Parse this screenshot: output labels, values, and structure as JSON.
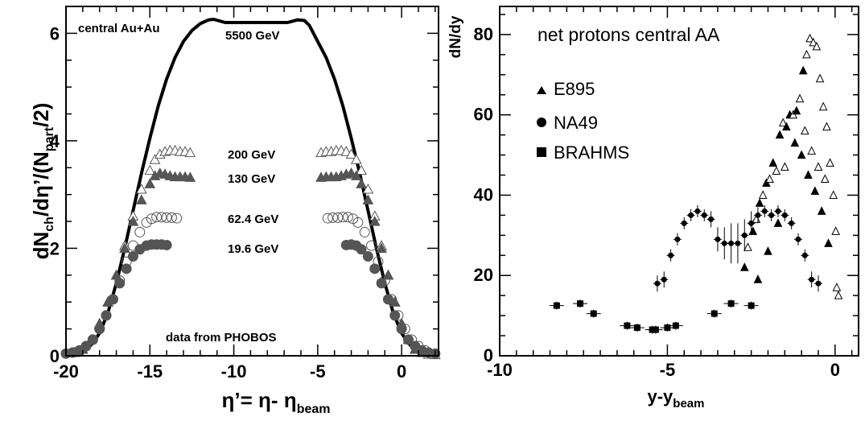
{
  "chart_data": [
    {
      "type": "scatter",
      "title": "",
      "xlabel": {
        "main": "η’= η- η",
        "sub": "beam"
      },
      "ylabel": {
        "p1": "dN",
        "s1": "ch",
        "p2": "/dη’/(N",
        "s2": "part",
        "p3": "/2)"
      },
      "xlim": [
        -20,
        2.2
      ],
      "ylim": [
        0,
        6.5
      ],
      "x_ticks": [
        -20,
        -15,
        -10,
        -5,
        0
      ],
      "y_ticks": [
        0,
        2,
        4,
        6
      ],
      "annotations": {
        "system": "central Au+Au",
        "source": "data from PHOBOS",
        "e5500": "5500 GeV",
        "e200": "200 GeV",
        "e130": "130 GeV",
        "e62": "62.4 GeV",
        "e19": "19.6 GeV"
      },
      "curve_5500": {
        "x": [
          -20,
          -19.5,
          -19,
          -18.5,
          -18,
          -17.5,
          -17,
          -16.5,
          -16,
          -15.5,
          -15,
          -14.5,
          -14,
          -13.5,
          -13,
          -12.5,
          -12,
          -11.5,
          -11.2,
          -10.5,
          -9,
          -8,
          -6.8,
          -6.2,
          -5.8,
          -5.5,
          -5,
          -4.5,
          -4,
          -3.5,
          -3,
          -2.5,
          -2,
          -1.5,
          -1,
          -0.5,
          0,
          0.5,
          1,
          1.5,
          2,
          2.2
        ],
        "y": [
          0.02,
          0.04,
          0.09,
          0.2,
          0.42,
          0.8,
          1.35,
          2.0,
          2.7,
          3.4,
          4.05,
          4.65,
          5.15,
          5.55,
          5.85,
          6.05,
          6.18,
          6.25,
          6.26,
          6.2,
          6.2,
          6.2,
          6.2,
          6.25,
          6.24,
          6.15,
          5.85,
          5.55,
          5.15,
          4.65,
          4.05,
          3.4,
          2.7,
          2.0,
          1.35,
          0.8,
          0.42,
          0.2,
          0.09,
          0.04,
          0.02,
          0.02
        ]
      },
      "series": [
        {
          "name": "200 GeV",
          "marker": "triangle-open",
          "color": "#555555",
          "x": [
            -19.5,
            -19,
            -18.5,
            -18,
            -17.5,
            -17,
            -16.5,
            -16,
            -15.5,
            -15,
            -14.7,
            -14.4,
            -14.1,
            -13.8,
            -13.5,
            -13.2,
            -12.9,
            -12.6,
            -4.8,
            -4.5,
            -4.2,
            -3.9,
            -3.6,
            -3.3,
            -3.0,
            -2.7,
            -2.4,
            -2.0,
            -1.6,
            -1.2,
            -0.8,
            -0.4,
            0,
            0.4,
            0.8,
            1.2,
            1.6,
            2.0
          ],
          "y": [
            0.06,
            0.12,
            0.3,
            0.6,
            1.0,
            1.5,
            2.05,
            2.6,
            3.1,
            3.45,
            3.65,
            3.75,
            3.8,
            3.82,
            3.82,
            3.8,
            3.8,
            3.78,
            3.78,
            3.8,
            3.8,
            3.82,
            3.82,
            3.8,
            3.75,
            3.65,
            3.45,
            3.1,
            2.6,
            2.05,
            1.5,
            1.0,
            0.6,
            0.3,
            0.12,
            0.06,
            0.03,
            0.02
          ]
        },
        {
          "name": "130 GeV",
          "marker": "triangle-filled",
          "color": "#555555",
          "x": [
            -19.5,
            -19,
            -18.5,
            -18,
            -17.5,
            -17,
            -16.5,
            -16,
            -15.5,
            -15,
            -14.7,
            -14.4,
            -14.1,
            -13.8,
            -13.5,
            -13.2,
            -12.9,
            -12.6,
            -4.8,
            -4.5,
            -4.2,
            -3.9,
            -3.6,
            -3.3,
            -3.0,
            -2.7,
            -2.4,
            -2.0,
            -1.6,
            -1.2,
            -0.8,
            -0.4,
            0,
            0.4,
            0.8,
            1.2
          ],
          "y": [
            0.06,
            0.12,
            0.3,
            0.6,
            1.0,
            1.5,
            2.0,
            2.5,
            2.9,
            3.2,
            3.35,
            3.4,
            3.38,
            3.35,
            3.33,
            3.33,
            3.33,
            3.32,
            3.32,
            3.33,
            3.33,
            3.33,
            3.35,
            3.38,
            3.4,
            3.35,
            3.2,
            2.9,
            2.5,
            2.0,
            1.5,
            1.0,
            0.6,
            0.3,
            0.12,
            0.06
          ]
        },
        {
          "name": "62.4 GeV",
          "marker": "circle-open",
          "color": "#555555",
          "x": [
            -19.6,
            -19.2,
            -18.8,
            -18.4,
            -18,
            -17.6,
            -17.2,
            -16.8,
            -16.4,
            -16,
            -15.6,
            -15.2,
            -14.9,
            -14.6,
            -14.3,
            -14.0,
            -13.7,
            -13.4,
            -4.4,
            -4.1,
            -3.8,
            -3.5,
            -3.2,
            -2.9,
            -2.6,
            -2.2,
            -1.8,
            -1.4,
            -1.0,
            -0.6,
            -0.2,
            0.2,
            0.6,
            1.0,
            1.4
          ],
          "y": [
            0.06,
            0.1,
            0.18,
            0.3,
            0.5,
            0.75,
            1.05,
            1.4,
            1.75,
            2.05,
            2.3,
            2.48,
            2.55,
            2.58,
            2.58,
            2.57,
            2.57,
            2.56,
            2.56,
            2.57,
            2.57,
            2.58,
            2.58,
            2.55,
            2.48,
            2.3,
            2.05,
            1.75,
            1.4,
            1.05,
            0.75,
            0.5,
            0.3,
            0.18,
            0.1
          ]
        },
        {
          "name": "19.6 GeV",
          "marker": "circle-filled",
          "color": "#555555",
          "x": [
            -20,
            -19.6,
            -19.2,
            -18.8,
            -18.4,
            -18,
            -17.6,
            -17.2,
            -16.8,
            -16.4,
            -16,
            -15.6,
            -15.2,
            -14.9,
            -14.6,
            -14.3,
            -14.0,
            -3.3,
            -3.0,
            -2.7,
            -2.4,
            -2.0,
            -1.6,
            -1.2,
            -0.8,
            -0.4,
            0,
            0.4,
            0.8,
            1.2,
            1.6,
            2.0
          ],
          "y": [
            0.04,
            0.06,
            0.1,
            0.18,
            0.3,
            0.5,
            0.75,
            1.05,
            1.35,
            1.62,
            1.85,
            1.98,
            2.05,
            2.07,
            2.07,
            2.07,
            2.06,
            2.06,
            2.07,
            2.05,
            1.98,
            1.85,
            1.62,
            1.35,
            1.05,
            0.75,
            0.5,
            0.3,
            0.18,
            0.1,
            0.06,
            0.04
          ]
        }
      ]
    },
    {
      "type": "scatter",
      "title": "net protons central AA",
      "xlabel": {
        "main": "y-y",
        "sub": "beam"
      },
      "ylabel": "dN/dy",
      "xlim": [
        -10,
        0.7
      ],
      "ylim": [
        0,
        87
      ],
      "x_ticks": [
        -10,
        -5,
        0
      ],
      "y_ticks": [
        0,
        20,
        40,
        60,
        80
      ],
      "legend": [
        {
          "label": "E895",
          "marker": "triangle-filled"
        },
        {
          "label": "NA49",
          "marker": "circle-filled"
        },
        {
          "label": "BRAHMS",
          "marker": "square-filled"
        }
      ],
      "series": [
        {
          "name": "E895",
          "marker": "triangle",
          "color": "#000000",
          "points": [
            {
              "x": -2.7,
              "y": 22,
              "f": 1
            },
            {
              "x": -2.6,
              "y": 27,
              "f": 0
            },
            {
              "x": -2.45,
              "y": 31,
              "f": 1
            },
            {
              "x": -2.35,
              "y": 34,
              "f": 0
            },
            {
              "x": -2.25,
              "y": 38,
              "f": 1
            },
            {
              "x": -2.15,
              "y": 40,
              "f": 0
            },
            {
              "x": -2.05,
              "y": 43,
              "f": 1
            },
            {
              "x": -1.95,
              "y": 44,
              "f": 0
            },
            {
              "x": -1.85,
              "y": 48,
              "f": 1
            },
            {
              "x": -1.75,
              "y": 46,
              "f": 0
            },
            {
              "x": -1.65,
              "y": 55,
              "f": 1
            },
            {
              "x": -1.55,
              "y": 58,
              "f": 0
            },
            {
              "x": -1.45,
              "y": 57,
              "f": 1
            },
            {
              "x": -1.35,
              "y": 60,
              "f": 1
            },
            {
              "x": -1.25,
              "y": 60,
              "f": 0
            },
            {
              "x": -1.15,
              "y": 61,
              "f": 1
            },
            {
              "x": -1.05,
              "y": 64,
              "f": 0
            },
            {
              "x": -0.95,
              "y": 71,
              "f": 1
            },
            {
              "x": -0.85,
              "y": 75,
              "f": 0
            },
            {
              "x": -0.75,
              "y": 79,
              "f": 0
            },
            {
              "x": -0.65,
              "y": 78,
              "f": 0
            },
            {
              "x": -0.55,
              "y": 77,
              "f": 0
            },
            {
              "x": -0.45,
              "y": 69,
              "f": 0
            },
            {
              "x": -0.35,
              "y": 62,
              "f": 0
            },
            {
              "x": -0.25,
              "y": 57,
              "f": 0
            },
            {
              "x": -0.15,
              "y": 48,
              "f": 0
            },
            {
              "x": -0.05,
              "y": 40,
              "f": 0
            },
            {
              "x": 0.02,
              "y": 31,
              "f": 0
            },
            {
              "x": 0.05,
              "y": 17,
              "f": 0
            },
            {
              "x": 0.1,
              "y": 15,
              "f": 0
            },
            {
              "x": -1.2,
              "y": 53,
              "f": 1
            },
            {
              "x": -1.0,
              "y": 50,
              "f": 1
            },
            {
              "x": -0.8,
              "y": 45,
              "f": 1
            },
            {
              "x": -0.6,
              "y": 41,
              "f": 1
            },
            {
              "x": -0.4,
              "y": 36,
              "f": 1
            },
            {
              "x": -0.2,
              "y": 28,
              "f": 1
            },
            {
              "x": -1.7,
              "y": 33,
              "f": 1
            },
            {
              "x": -2.0,
              "y": 26,
              "f": 1
            },
            {
              "x": -2.3,
              "y": 19,
              "f": 1
            },
            {
              "x": -0.9,
              "y": 56,
              "f": 0
            },
            {
              "x": -0.7,
              "y": 51,
              "f": 0
            },
            {
              "x": -0.5,
              "y": 47,
              "f": 0
            },
            {
              "x": -0.3,
              "y": 44,
              "f": 0
            },
            {
              "x": -1.5,
              "y": 47,
              "f": 0
            }
          ]
        },
        {
          "name": "NA49",
          "marker": "circle-filled",
          "color": "#000000",
          "points": [
            {
              "x": -5.3,
              "y": 18,
              "e": 2
            },
            {
              "x": -5.1,
              "y": 19,
              "e": 2
            },
            {
              "x": -4.9,
              "y": 25,
              "e": 1.5
            },
            {
              "x": -4.7,
              "y": 29,
              "e": 1.5
            },
            {
              "x": -4.5,
              "y": 33,
              "e": 1.5
            },
            {
              "x": -4.3,
              "y": 35,
              "e": 1.5
            },
            {
              "x": -4.1,
              "y": 36,
              "e": 1.5
            },
            {
              "x": -3.9,
              "y": 35,
              "e": 1.5
            },
            {
              "x": -3.7,
              "y": 34,
              "e": 2
            },
            {
              "x": -3.5,
              "y": 29,
              "e": 3
            },
            {
              "x": -3.3,
              "y": 28,
              "e": 4
            },
            {
              "x": -3.1,
              "y": 28,
              "e": 5
            },
            {
              "x": -2.9,
              "y": 28,
              "e": 5
            },
            {
              "x": -2.7,
              "y": 30,
              "e": 4
            },
            {
              "x": -2.5,
              "y": 33,
              "e": 3
            },
            {
              "x": -2.3,
              "y": 35,
              "e": 2
            },
            {
              "x": -2.1,
              "y": 36,
              "e": 1.5
            },
            {
              "x": -1.9,
              "y": 35,
              "e": 1.5
            },
            {
              "x": -1.7,
              "y": 36,
              "e": 1.5
            },
            {
              "x": -1.5,
              "y": 35,
              "e": 1.5
            },
            {
              "x": -1.3,
              "y": 33,
              "e": 1.5
            },
            {
              "x": -1.1,
              "y": 29,
              "e": 1.5
            },
            {
              "x": -0.9,
              "y": 25,
              "e": 1.5
            },
            {
              "x": -0.7,
              "y": 19,
              "e": 2
            },
            {
              "x": -0.5,
              "y": 18,
              "e": 2
            }
          ]
        },
        {
          "name": "BRAHMS",
          "marker": "square-filled",
          "color": "#000000",
          "points": [
            {
              "x": -8.3,
              "y": 12.5
            },
            {
              "x": -7.6,
              "y": 13
            },
            {
              "x": -7.2,
              "y": 10.5
            },
            {
              "x": -6.2,
              "y": 7.5
            },
            {
              "x": -5.9,
              "y": 7
            },
            {
              "x": -5.45,
              "y": 6.5
            },
            {
              "x": -5.35,
              "y": 6.5
            },
            {
              "x": -5.0,
              "y": 7
            },
            {
              "x": -4.75,
              "y": 7.5
            },
            {
              "x": -3.6,
              "y": 10.5
            },
            {
              "x": -3.1,
              "y": 13
            },
            {
              "x": -2.5,
              "y": 12.5
            }
          ]
        }
      ]
    }
  ]
}
